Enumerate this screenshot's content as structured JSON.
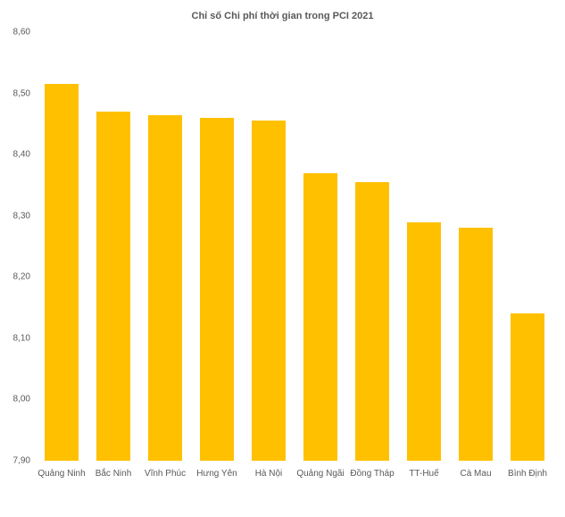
{
  "chart": {
    "type": "bar",
    "title": "Chỉ số Chi phí thời gian trong PCI 2021",
    "title_fontsize": 11,
    "title_color": "#595959",
    "categories": [
      "Quảng Ninh",
      "Bắc Ninh",
      "Vĩnh Phúc",
      "Hưng Yên",
      "Hà Nội",
      "Quảng Ngãi",
      "Đồng Tháp",
      "TT-Huế",
      "Cà Mau",
      "Bình Định"
    ],
    "values": [
      8.515,
      8.47,
      8.465,
      8.46,
      8.455,
      8.37,
      8.355,
      8.29,
      8.28,
      8.14
    ],
    "bar_color": "#ffc000",
    "background_color": "#ffffff",
    "ylim": [
      7.9,
      8.6
    ],
    "ytick_step": 0.1,
    "yticks": [
      "7,90",
      "8,00",
      "8,10",
      "8,20",
      "8,30",
      "8,40",
      "8,50",
      "8,60"
    ],
    "label_fontsize": 10,
    "label_color": "#595959",
    "bar_width_ratio": 0.65
  }
}
